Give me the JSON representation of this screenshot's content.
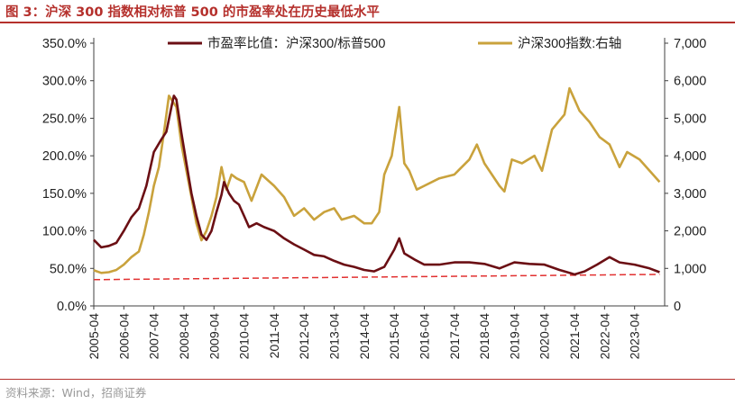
{
  "figure": {
    "title": "图 3：沪深 300 指数相对标普 500 的市盈率处在历史最低水平",
    "source": "资料来源：Wind，招商证券"
  },
  "colors": {
    "brand": "#b5302c",
    "ratio_series": "#6b0f14",
    "index_series": "#c9a23c",
    "trend_line": "#e23030",
    "axis": "#404040",
    "source_text": "#999999"
  },
  "chart_data": {
    "type": "line",
    "title": "",
    "xlabel": "",
    "ylabel_left": "",
    "ylabel_right": "",
    "grid": false,
    "legend_position": "top",
    "x_ticks": [
      "2005-04",
      "2006-04",
      "2007-04",
      "2008-04",
      "2009-04",
      "2010-04",
      "2011-04",
      "2012-04",
      "2013-04",
      "2014-04",
      "2015-04",
      "2016-04",
      "2017-04",
      "2018-04",
      "2019-04",
      "2020-04",
      "2021-04",
      "2022-04",
      "2023-04"
    ],
    "x_range": [
      "2005-04",
      "2024-04"
    ],
    "y_left": {
      "min": 0,
      "max": 350,
      "ticks": [
        0,
        50,
        100,
        150,
        200,
        250,
        300,
        350
      ],
      "tick_labels": [
        "0.0%",
        "50.0%",
        "100.0%",
        "150.0%",
        "200.0%",
        "250.0%",
        "300.0%",
        "350.0%"
      ]
    },
    "y_right": {
      "min": 0,
      "max": 7000,
      "ticks": [
        0,
        1000,
        2000,
        3000,
        4000,
        5000,
        6000,
        7000
      ],
      "tick_labels": [
        "0",
        "1,000",
        "2,000",
        "3,000",
        "4,000",
        "5,000",
        "6,000",
        "7,000"
      ]
    },
    "series": [
      {
        "name": "市盈率比值：沪深300/标普500",
        "axis": "left",
        "unit": "%",
        "points": [
          [
            "2005-04",
            88
          ],
          [
            "2005-07",
            78
          ],
          [
            "2005-10",
            80
          ],
          [
            "2006-01",
            84
          ],
          [
            "2006-04",
            100
          ],
          [
            "2006-07",
            118
          ],
          [
            "2006-10",
            130
          ],
          [
            "2007-01",
            160
          ],
          [
            "2007-04",
            205
          ],
          [
            "2007-07",
            222
          ],
          [
            "2007-09",
            232
          ],
          [
            "2007-11",
            265
          ],
          [
            "2007-12",
            280
          ],
          [
            "2008-01",
            275
          ],
          [
            "2008-03",
            230
          ],
          [
            "2008-05",
            190
          ],
          [
            "2008-07",
            150
          ],
          [
            "2008-09",
            120
          ],
          [
            "2008-11",
            95
          ],
          [
            "2009-01",
            88
          ],
          [
            "2009-03",
            100
          ],
          [
            "2009-05",
            125
          ],
          [
            "2009-07",
            148
          ],
          [
            "2009-08",
            165
          ],
          [
            "2009-10",
            150
          ],
          [
            "2009-12",
            140
          ],
          [
            "2010-02",
            135
          ],
          [
            "2010-04",
            120
          ],
          [
            "2010-06",
            105
          ],
          [
            "2010-09",
            110
          ],
          [
            "2010-12",
            105
          ],
          [
            "2011-04",
            100
          ],
          [
            "2011-08",
            90
          ],
          [
            "2011-12",
            82
          ],
          [
            "2012-04",
            75
          ],
          [
            "2012-08",
            68
          ],
          [
            "2012-12",
            66
          ],
          [
            "2013-04",
            60
          ],
          [
            "2013-08",
            55
          ],
          [
            "2013-12",
            52
          ],
          [
            "2014-04",
            48
          ],
          [
            "2014-08",
            46
          ],
          [
            "2014-12",
            52
          ],
          [
            "2015-04",
            75
          ],
          [
            "2015-06",
            90
          ],
          [
            "2015-08",
            70
          ],
          [
            "2015-12",
            62
          ],
          [
            "2016-04",
            55
          ],
          [
            "2016-10",
            55
          ],
          [
            "2017-04",
            58
          ],
          [
            "2017-10",
            58
          ],
          [
            "2018-04",
            56
          ],
          [
            "2018-10",
            50
          ],
          [
            "2019-04",
            58
          ],
          [
            "2019-10",
            56
          ],
          [
            "2020-04",
            55
          ],
          [
            "2020-10",
            48
          ],
          [
            "2021-02",
            44
          ],
          [
            "2021-04",
            42
          ],
          [
            "2021-08",
            46
          ],
          [
            "2022-01",
            55
          ],
          [
            "2022-06",
            65
          ],
          [
            "2022-10",
            58
          ],
          [
            "2023-04",
            55
          ],
          [
            "2023-10",
            50
          ],
          [
            "2024-02",
            45
          ]
        ]
      },
      {
        "name": "沪深300指数:右轴",
        "axis": "right",
        "unit": "",
        "points": [
          [
            "2005-04",
            950
          ],
          [
            "2005-07",
            880
          ],
          [
            "2005-10",
            900
          ],
          [
            "2006-01",
            960
          ],
          [
            "2006-04",
            1100
          ],
          [
            "2006-07",
            1300
          ],
          [
            "2006-10",
            1450
          ],
          [
            "2006-12",
            1900
          ],
          [
            "2007-02",
            2500
          ],
          [
            "2007-04",
            3200
          ],
          [
            "2007-06",
            3700
          ],
          [
            "2007-08",
            4600
          ],
          [
            "2007-10",
            5600
          ],
          [
            "2007-12",
            5400
          ],
          [
            "2008-01",
            5300
          ],
          [
            "2008-03",
            4300
          ],
          [
            "2008-05",
            3600
          ],
          [
            "2008-07",
            2900
          ],
          [
            "2008-09",
            2200
          ],
          [
            "2008-11",
            1750
          ],
          [
            "2009-01",
            2000
          ],
          [
            "2009-03",
            2400
          ],
          [
            "2009-05",
            2900
          ],
          [
            "2009-07",
            3700
          ],
          [
            "2009-09",
            3100
          ],
          [
            "2009-11",
            3500
          ],
          [
            "2010-01",
            3400
          ],
          [
            "2010-04",
            3300
          ],
          [
            "2010-07",
            2800
          ],
          [
            "2010-11",
            3500
          ],
          [
            "2011-04",
            3200
          ],
          [
            "2011-08",
            2900
          ],
          [
            "2011-12",
            2400
          ],
          [
            "2012-04",
            2600
          ],
          [
            "2012-08",
            2300
          ],
          [
            "2012-12",
            2500
          ],
          [
            "2013-04",
            2600
          ],
          [
            "2013-07",
            2300
          ],
          [
            "2013-12",
            2400
          ],
          [
            "2014-04",
            2200
          ],
          [
            "2014-07",
            2200
          ],
          [
            "2014-10",
            2500
          ],
          [
            "2014-12",
            3500
          ],
          [
            "2015-03",
            4000
          ],
          [
            "2015-06",
            5300
          ],
          [
            "2015-08",
            3800
          ],
          [
            "2015-10",
            3600
          ],
          [
            "2016-01",
            3100
          ],
          [
            "2016-04",
            3200
          ],
          [
            "2016-10",
            3400
          ],
          [
            "2017-04",
            3500
          ],
          [
            "2017-10",
            3900
          ],
          [
            "2018-01",
            4300
          ],
          [
            "2018-04",
            3800
          ],
          [
            "2018-10",
            3200
          ],
          [
            "2018-12",
            3050
          ],
          [
            "2019-03",
            3900
          ],
          [
            "2019-07",
            3800
          ],
          [
            "2019-12",
            4000
          ],
          [
            "2020-03",
            3600
          ],
          [
            "2020-07",
            4700
          ],
          [
            "2020-12",
            5100
          ],
          [
            "2021-02",
            5800
          ],
          [
            "2021-06",
            5200
          ],
          [
            "2021-10",
            4900
          ],
          [
            "2022-02",
            4500
          ],
          [
            "2022-06",
            4300
          ],
          [
            "2022-10",
            3700
          ],
          [
            "2023-01",
            4100
          ],
          [
            "2023-06",
            3900
          ],
          [
            "2023-10",
            3600
          ],
          [
            "2024-02",
            3300
          ]
        ]
      }
    ],
    "reference_line": {
      "axis": "left",
      "from": [
        "2005-04",
        35
      ],
      "to": [
        "2024-02",
        42
      ],
      "style": "dashed"
    }
  }
}
